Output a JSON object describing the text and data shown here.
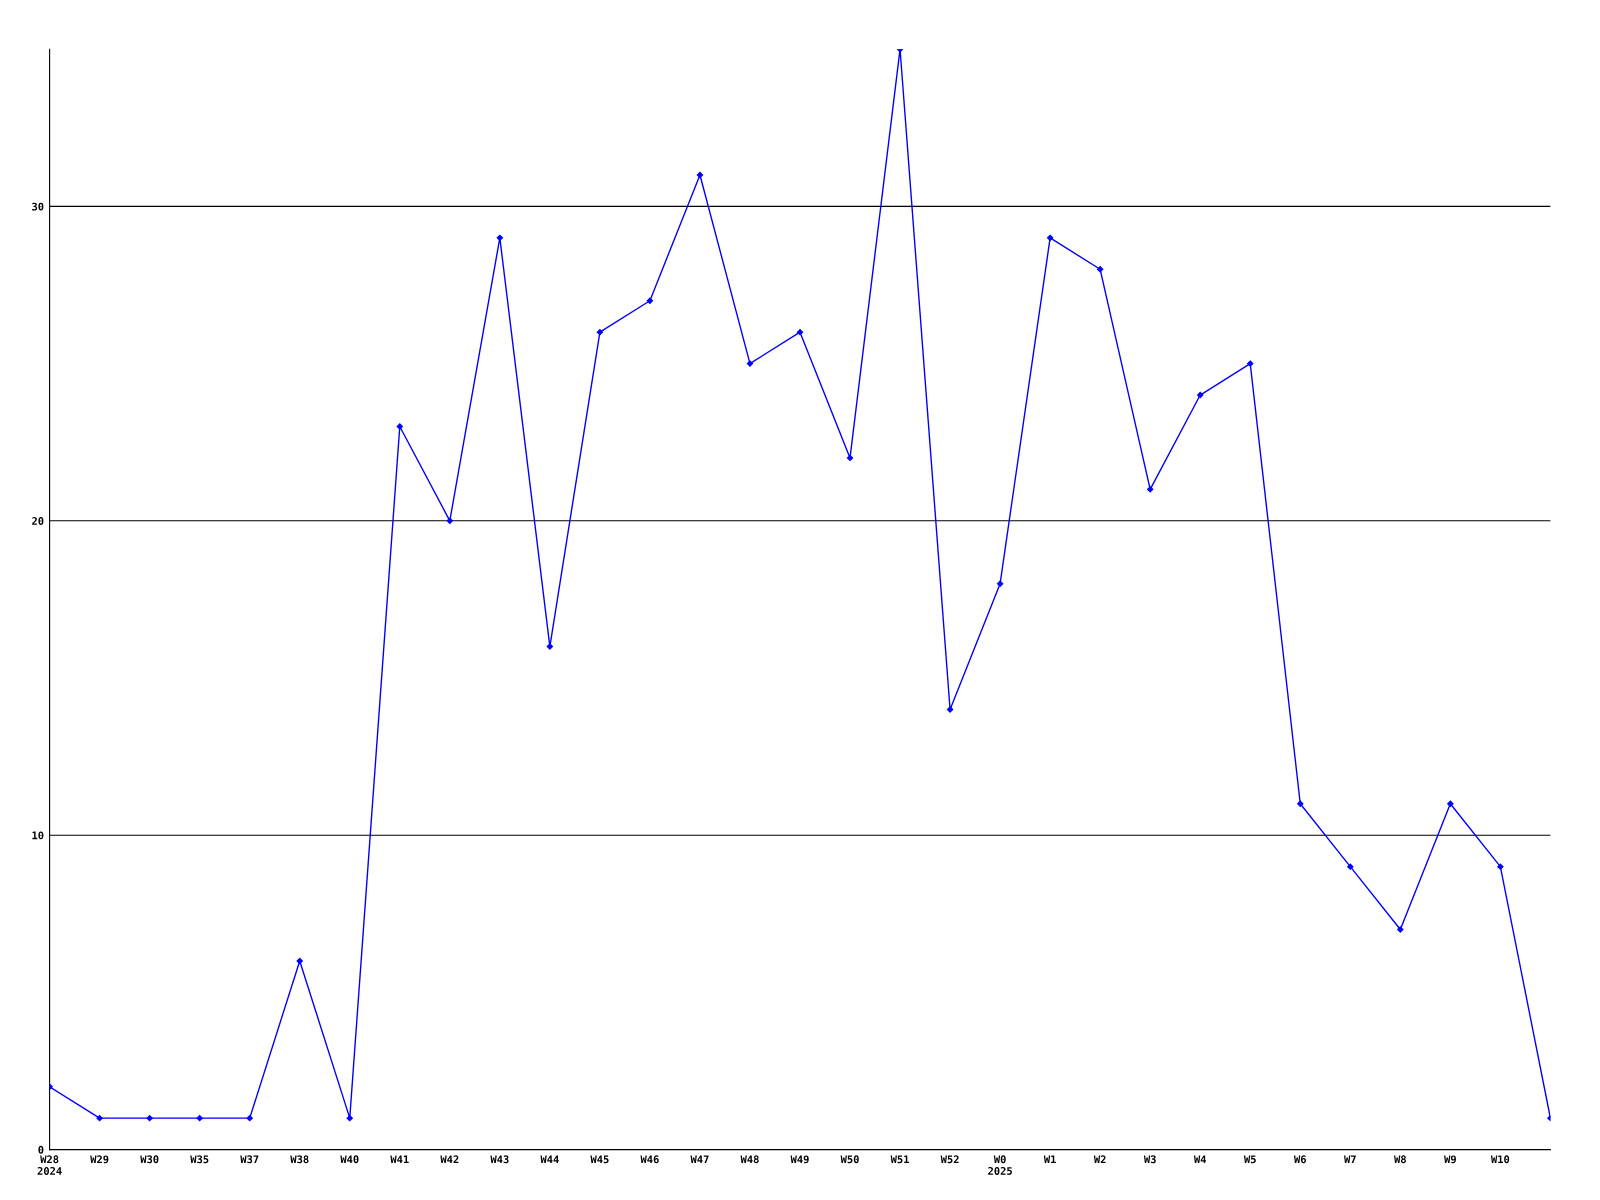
{
  "chart_data": {
    "type": "line",
    "categories": [
      "W28\n2024",
      "W29",
      "W30",
      "W35",
      "W37",
      "W38",
      "W40",
      "W41",
      "W42",
      "W43",
      "W44",
      "W45",
      "W46",
      "W47",
      "W48",
      "W49",
      "W50",
      "W51",
      "W52",
      "W0\n2025",
      "W1",
      "W2",
      "W3",
      "W4",
      "W5",
      "W6",
      "W7",
      "W8",
      "W9",
      "W10",
      null
    ],
    "series": [
      {
        "color": "#0000ff",
        "values": [
          2,
          1,
          1,
          1,
          1,
          6,
          1,
          23,
          20,
          29,
          16,
          26,
          27,
          31,
          25,
          26,
          22,
          35,
          14,
          18,
          29,
          28,
          21,
          24,
          25,
          11,
          9,
          7,
          11,
          9,
          1
        ]
      }
    ],
    "ylim": [
      0,
      35
    ],
    "yticks": [
      0,
      10,
      20,
      30
    ],
    "grid": "y",
    "marker": "diamond",
    "line_style": "solid",
    "legend": false
  }
}
